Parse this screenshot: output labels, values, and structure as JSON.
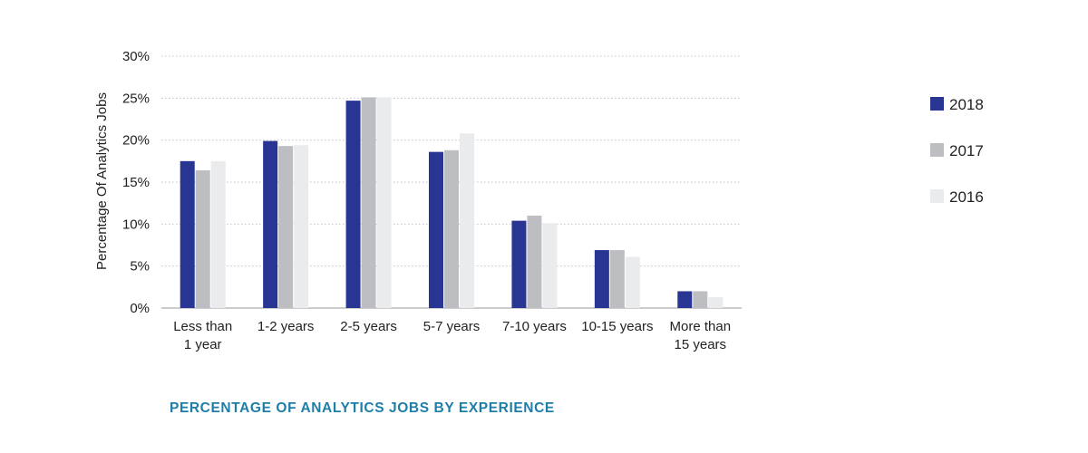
{
  "chart_data": {
    "type": "bar",
    "title": "PERCENTAGE OF ANALYTICS JOBS BY EXPERIENCE",
    "ylabel": "Percentage Of Analytics Jobs",
    "xlabel": "",
    "ylim": [
      0,
      30
    ],
    "yticks": [
      "0%",
      "5%",
      "10%",
      "15%",
      "20%",
      "25%",
      "30%"
    ],
    "grid": true,
    "legend_position": "right",
    "categories": [
      [
        "Less than",
        "1 year"
      ],
      [
        "1-2 years"
      ],
      [
        "2-5 years"
      ],
      [
        "5-7 years"
      ],
      [
        "7-10 years"
      ],
      [
        "10-15 years"
      ],
      [
        "More than",
        "15 years"
      ]
    ],
    "series": [
      {
        "name": "2018",
        "color": "#283593",
        "values": [
          17.5,
          19.9,
          24.7,
          18.6,
          10.4,
          6.9,
          2.0
        ]
      },
      {
        "name": "2017",
        "color": "#bcbec2",
        "values": [
          16.4,
          19.3,
          25.1,
          18.8,
          11.0,
          6.9,
          2.0
        ]
      },
      {
        "name": "2016",
        "color": "#eaebed",
        "values": [
          17.5,
          19.4,
          25.1,
          20.8,
          10.1,
          6.1,
          1.3
        ]
      }
    ]
  }
}
